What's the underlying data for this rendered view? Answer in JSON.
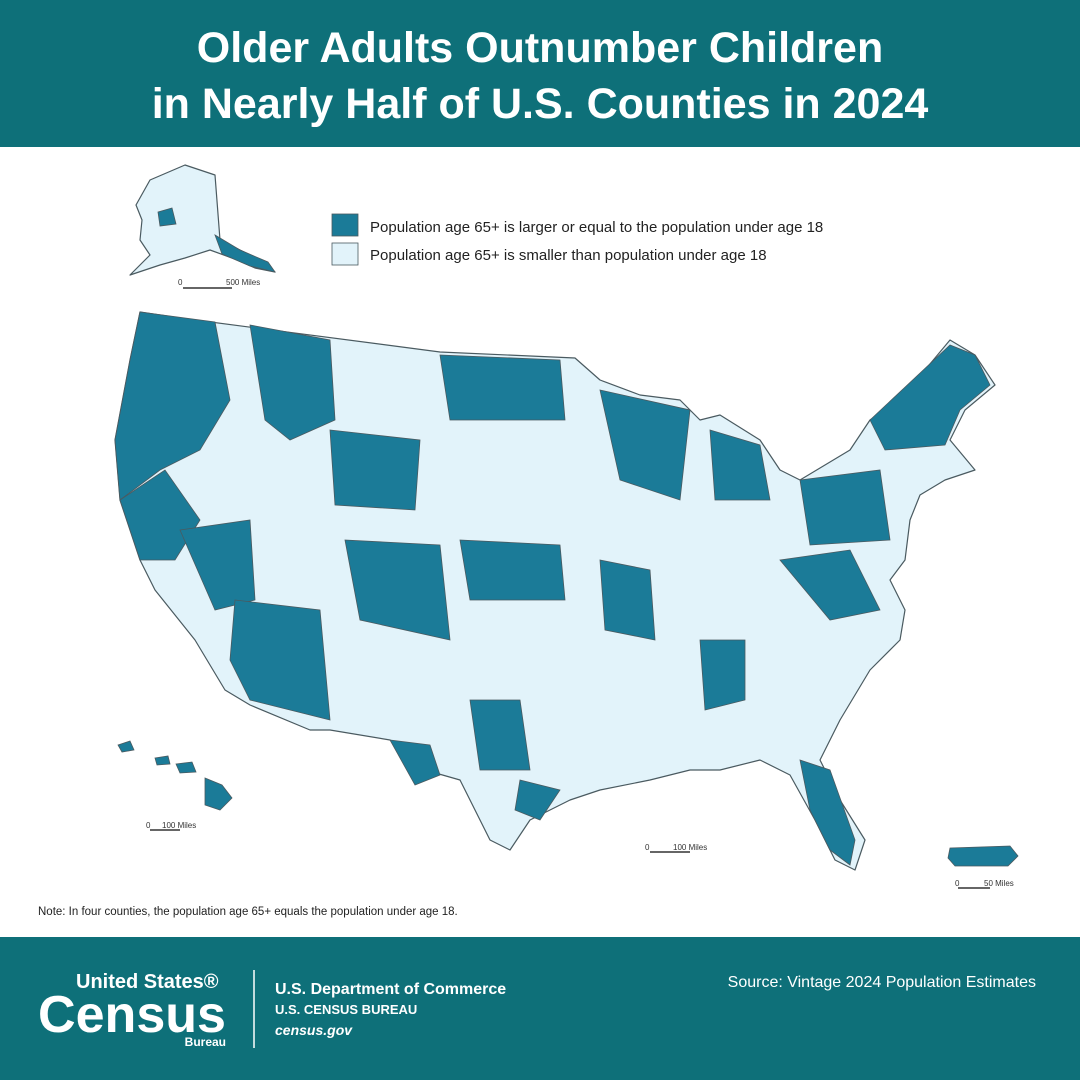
{
  "header": {
    "title_lines": [
      "Older Adults Outnumber Children",
      "in Nearly Half of U.S. Counties in 2024"
    ]
  },
  "legend": {
    "items": [
      {
        "label": "Population age 65+ is larger or equal to the population under age 18",
        "color": "#1b7b98"
      },
      {
        "label": "Population age 65+ is smaller than population under age 18",
        "color": "#e2f3fa"
      }
    ]
  },
  "scale_bars": {
    "alaska": {
      "zero": "0",
      "distance": "500 Miles"
    },
    "hawaii": {
      "zero": "0",
      "distance": "100 Miles"
    },
    "mainland": {
      "zero": "0",
      "distance": "100 Miles"
    },
    "puerto_rico": {
      "zero": "0",
      "distance": "50 Miles"
    }
  },
  "note": "Note: In four counties, the population age 65+ equals the population under age 18.",
  "footer": {
    "logo": {
      "line1": "United States®",
      "line2": "Census",
      "line3": "Bureau"
    },
    "department": "U.S. Department of Commerce",
    "bureau": "U.S. CENSUS BUREAU",
    "website": "census.gov",
    "source": "Source: Vintage 2024 Population Estimates"
  }
}
